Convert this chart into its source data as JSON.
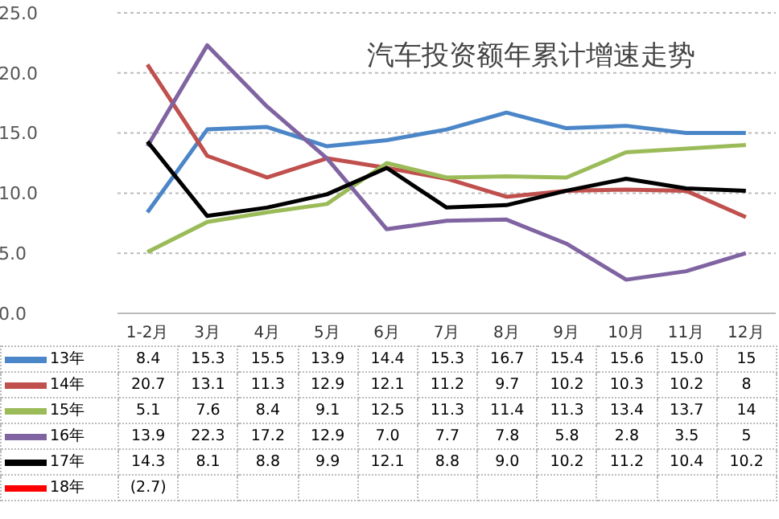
{
  "chart_data": {
    "type": "line",
    "title": "汽车投资额年累计增速走势",
    "categories": [
      "1-2月",
      "3月",
      "4月",
      "5月",
      "6月",
      "7月",
      "8月",
      "9月",
      "10月",
      "11月",
      "12月"
    ],
    "series": [
      {
        "name": "13年",
        "color": "#4a86c8",
        "values": [
          8.4,
          15.3,
          15.5,
          13.9,
          14.4,
          15.3,
          16.7,
          15.4,
          15.6,
          15.0,
          15
        ],
        "value_labels": [
          "8.4",
          "15.3",
          "15.5",
          "13.9",
          "14.4",
          "15.3",
          "16.7",
          "15.4",
          "15.6",
          "15.0",
          "15"
        ]
      },
      {
        "name": "14年",
        "color": "#c0504d",
        "values": [
          20.7,
          13.1,
          11.3,
          12.9,
          12.1,
          11.2,
          9.7,
          10.2,
          10.3,
          10.2,
          8
        ],
        "value_labels": [
          "20.7",
          "13.1",
          "11.3",
          "12.9",
          "12.1",
          "11.2",
          "9.7",
          "10.2",
          "10.3",
          "10.2",
          "8"
        ]
      },
      {
        "name": "15年",
        "color": "#9bbb59",
        "values": [
          5.1,
          7.6,
          8.4,
          9.1,
          12.5,
          11.3,
          11.4,
          11.3,
          13.4,
          13.7,
          14
        ],
        "value_labels": [
          "5.1",
          "7.6",
          "8.4",
          "9.1",
          "12.5",
          "11.3",
          "11.4",
          "11.3",
          "13.4",
          "13.7",
          "14"
        ]
      },
      {
        "name": "16年",
        "color": "#8064a2",
        "values": [
          13.9,
          22.3,
          17.2,
          12.9,
          7.0,
          7.7,
          7.8,
          5.8,
          2.8,
          3.5,
          5
        ],
        "value_labels": [
          "13.9",
          "22.3",
          "17.2",
          "12.9",
          "7.0",
          "7.7",
          "7.8",
          "5.8",
          "2.8",
          "3.5",
          "5"
        ]
      },
      {
        "name": "17年",
        "color": "#000000",
        "values": [
          14.3,
          8.1,
          8.8,
          9.9,
          12.1,
          8.8,
          9.0,
          10.2,
          11.2,
          10.4,
          10.2
        ],
        "value_labels": [
          "14.3",
          "8.1",
          "8.8",
          "9.9",
          "12.1",
          "8.8",
          "9.0",
          "10.2",
          "11.2",
          "10.4",
          "10.2"
        ]
      },
      {
        "name": "18年",
        "color": "#ff0000",
        "values": [
          null,
          null,
          null,
          null,
          null,
          null,
          null,
          null,
          null,
          null,
          null
        ],
        "value_labels": [
          "(2.7)",
          null,
          null,
          null,
          null,
          null,
          null,
          null,
          null,
          null,
          null
        ]
      }
    ],
    "ylim": [
      0,
      25
    ],
    "yticks": [
      {
        "value": 0,
        "label": "0.0"
      },
      {
        "value": 5,
        "label": "5.0"
      },
      {
        "value": 10,
        "label": "10.0"
      },
      {
        "value": 15,
        "label": "15.0"
      },
      {
        "value": 20,
        "label": "20.0"
      },
      {
        "value": 25,
        "label": "25.0"
      }
    ],
    "grid": "y",
    "legend": "bottom",
    "marker": "none",
    "line_style": "solid"
  }
}
